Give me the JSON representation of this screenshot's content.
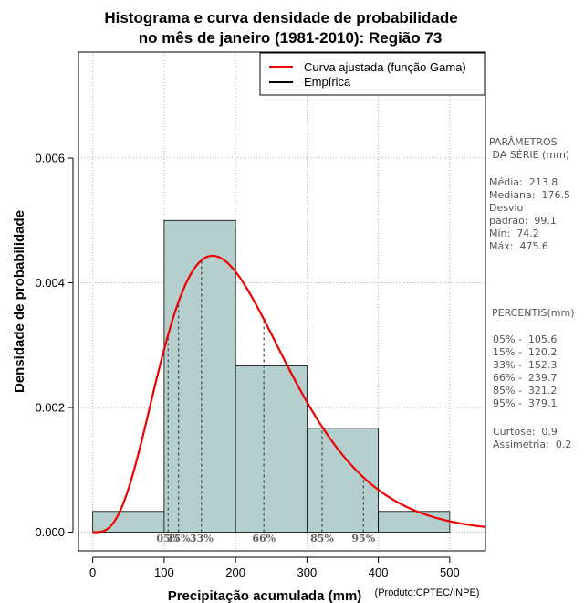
{
  "chart_data": {
    "type": "bar",
    "title_lines": [
      "Histograma e curva densidade de probabilidade",
      "no mês de janeiro (1981-2010): Região 73"
    ],
    "xlabel": "Precipitação acumulada (mm)",
    "ylabel": "Densidade de probabilidade",
    "credit": "(Produto:CPTEC/INPE)",
    "xlim": [
      -20,
      550
    ],
    "ylim": [
      -0.0003,
      0.0077
    ],
    "x_ticks": [
      0,
      100,
      200,
      300,
      400,
      500
    ],
    "y_ticks": [
      0.0,
      0.002,
      0.004,
      0.006
    ],
    "y_tick_labels": [
      "0.000",
      "0.002",
      "0.004",
      "0.006"
    ],
    "bins": [
      {
        "from": 0,
        "to": 100,
        "density": 0.000333
      },
      {
        "from": 100,
        "to": 200,
        "density": 0.005
      },
      {
        "from": 200,
        "to": 300,
        "density": 0.002667
      },
      {
        "from": 300,
        "to": 400,
        "density": 0.001667
      },
      {
        "from": 400,
        "to": 500,
        "density": 0.000333
      }
    ],
    "fitted_curve": {
      "name": "Curva ajustada (função Gama)",
      "distribution": "gamma",
      "shape": 4.64,
      "scale": 46.1,
      "color": "#ee0000"
    },
    "legend": [
      {
        "label": "Curva ajustada (função Gama)",
        "color": "#ee0000"
      },
      {
        "label": "Empírica",
        "color": "#000000"
      }
    ],
    "percentile_marks": [
      {
        "label": "05%",
        "value": 105.6
      },
      {
        "label": "15%",
        "value": 120.2
      },
      {
        "label": "33%",
        "value": 152.3
      },
      {
        "label": "66%",
        "value": 239.7
      },
      {
        "label": "85%",
        "value": 321.2
      },
      {
        "label": "95%",
        "value": 379.1
      }
    ],
    "bar_color": "#b5cfcf"
  },
  "params": {
    "heading": "PARÂMETROS\n DA SÉRIE (mm)",
    "lines": "Média:  213.8\nMediana:  176.5\nDesvio\npadrão:  99.1\nMín:  74.2\nMáx:  475.6"
  },
  "percentis": {
    "heading": "  PERCENTIS(mm)",
    "lines": "05% -  105.6\n15% -  120.2\n33% -  152.3\n66% -  239.7\n85% -  321.2\n95% -  379.1"
  },
  "stats": {
    "lines": "Curtose:  0.9\nAssimetria:  0.2"
  }
}
